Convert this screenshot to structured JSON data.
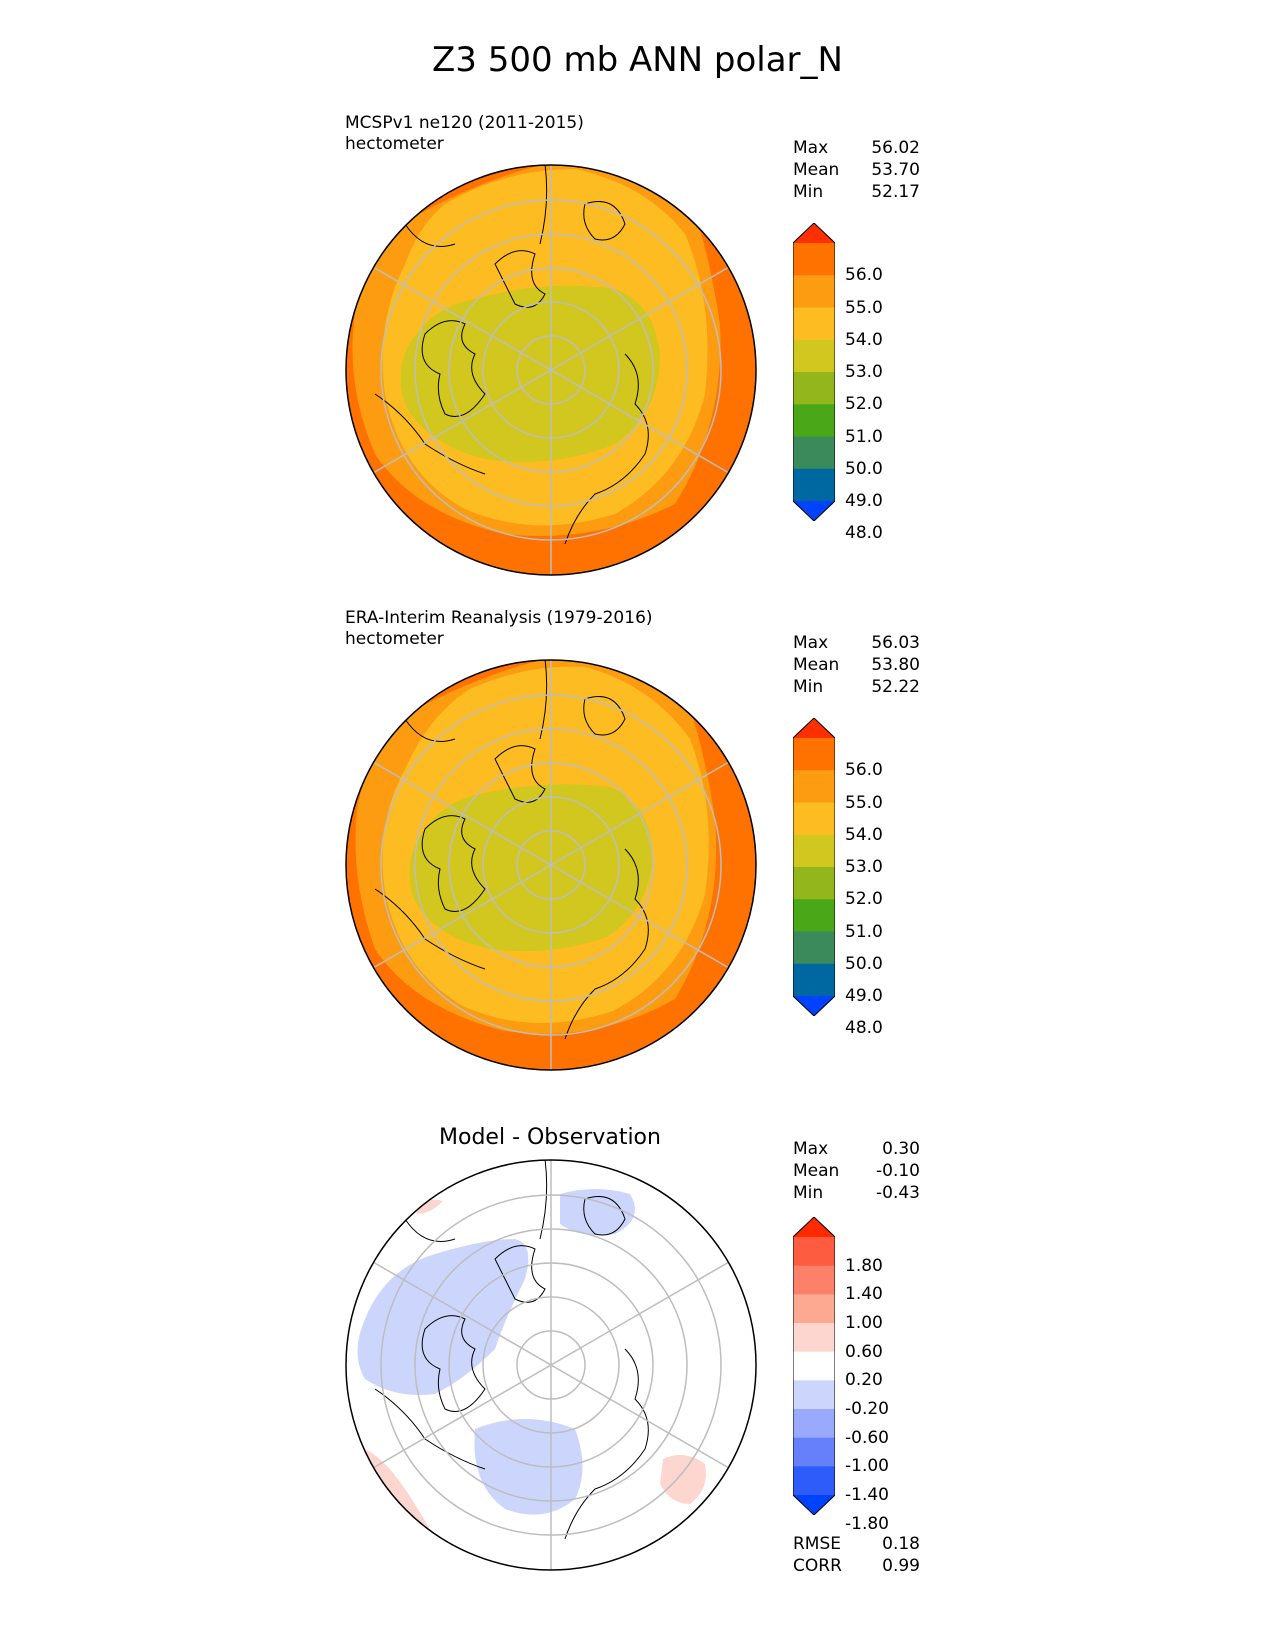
{
  "title": "Z3 500 mb ANN polar_N",
  "panels": [
    {
      "id": "model",
      "title_line1": "MCSPv1 ne120 (2011-2015)",
      "title_line2": "hectometer",
      "stats": {
        "max_label": "Max",
        "max": "56.02",
        "mean_label": "Mean",
        "mean": "53.70",
        "min_label": "Min",
        "min": "52.17"
      },
      "colorbar_ticks": [
        "56.0",
        "55.0",
        "54.0",
        "53.0",
        "52.0",
        "51.0",
        "50.0",
        "49.0",
        "48.0"
      ]
    },
    {
      "id": "obs",
      "title_line1": "ERA-Interim Reanalysis (1979-2016)",
      "title_line2": "hectometer",
      "stats": {
        "max_label": "Max",
        "max": "56.03",
        "mean_label": "Mean",
        "mean": "53.80",
        "min_label": "Min",
        "min": "52.22"
      },
      "colorbar_ticks": [
        "56.0",
        "55.0",
        "54.0",
        "53.0",
        "52.0",
        "51.0",
        "50.0",
        "49.0",
        "48.0"
      ]
    },
    {
      "id": "diff",
      "title": "Model - Observation",
      "stats": {
        "max_label": "Max",
        "max": "0.30",
        "mean_label": "Mean",
        "mean": "-0.10",
        "min_label": "Min",
        "min": "-0.43"
      },
      "colorbar_ticks": [
        "1.80",
        "1.40",
        "1.00",
        "0.60",
        "0.20",
        "-0.20",
        "-0.60",
        "-1.00",
        "-1.40",
        "-1.80"
      ],
      "rmse_label": "RMSE",
      "rmse": "0.18",
      "corr_label": "CORR",
      "corr": "0.99"
    }
  ],
  "colors": {
    "abs_scale": [
      "#0043ff",
      "#0068a0",
      "#3a8a5c",
      "#4aa818",
      "#92b61c",
      "#d1c71f",
      "#fdbd22",
      "#fd9c10",
      "#ff7200",
      "#ff3000"
    ],
    "diff_scale": [
      "#0043ff",
      "#2e5cfa",
      "#6680fc",
      "#99a9fc",
      "#ccd6fd",
      "#ffffff",
      "#fdd6d0",
      "#fca991",
      "#fd8068",
      "#fd5c40",
      "#ff2a00"
    ]
  }
}
